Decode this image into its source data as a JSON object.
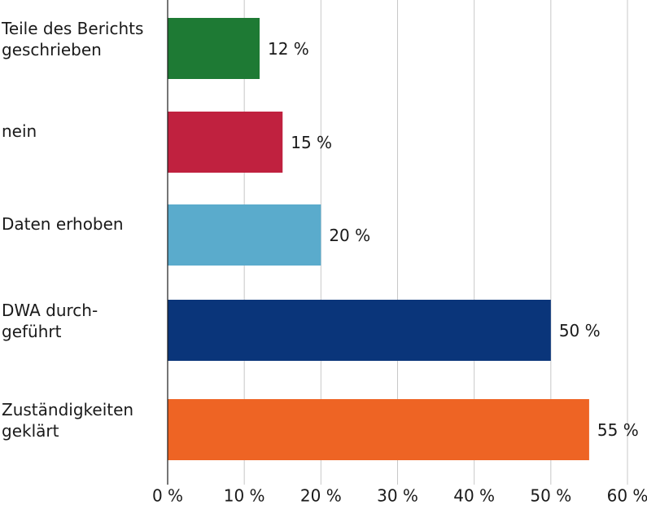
{
  "chart_data": {
    "type": "barh",
    "categories": [
      [
        "Teile des Berichts",
        "geschrieben"
      ],
      [
        "nein"
      ],
      [
        "Daten erhoben"
      ],
      [
        "DWA durch-",
        "geführt"
      ],
      [
        "Zuständigkeiten",
        "geklärt"
      ]
    ],
    "values": [
      12,
      15,
      20,
      50,
      55
    ],
    "value_labels": [
      "12 %",
      "15 %",
      "20 %",
      "50 %",
      "55 %"
    ],
    "colors": [
      "#1e7a34",
      "#c0213f",
      "#5aabcc",
      "#0a357a",
      "#ee6424"
    ],
    "xlim": [
      0,
      60
    ],
    "xticks": [
      {
        "value": 0,
        "label": "0 %"
      },
      {
        "value": 10,
        "label": "10 %"
      },
      {
        "value": 20,
        "label": "20 %"
      },
      {
        "value": 30,
        "label": "30 %"
      },
      {
        "value": 40,
        "label": "40 %"
      },
      {
        "value": 50,
        "label": "50 %"
      },
      {
        "value": 60,
        "label": "60 %"
      }
    ],
    "grid": true
  }
}
